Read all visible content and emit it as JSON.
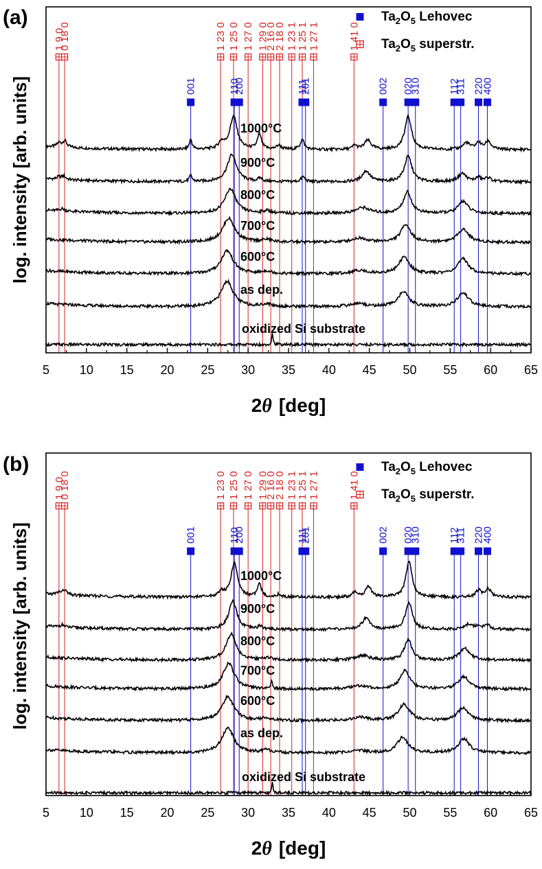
{
  "chart_data": [
    {
      "type": "line",
      "panel": "(a)",
      "xlabel_symbol": "2",
      "xlabel_theta": "θ",
      "xlabel_unit": "[deg]",
      "ylabel": "log. intensity [arb. units]",
      "xlim": [
        5,
        65
      ],
      "x_ticks": [
        5,
        10,
        15,
        20,
        25,
        30,
        35,
        40,
        45,
        50,
        55,
        60,
        65
      ],
      "legend": [
        {
          "marker": "filled-square",
          "color": "#1010d0",
          "pre": "Ta",
          "sub1": "2",
          "mid": "O",
          "sub2": "5",
          "post": " Lehovec"
        },
        {
          "marker": "crossed-square",
          "color": "#d62020",
          "pre": "Ta",
          "sub1": "2",
          "mid": "O",
          "sub2": "5",
          "post": " superstr."
        }
      ],
      "blue_reflections": [
        {
          "hkl": "001",
          "x": 22.9
        },
        {
          "hkl": "110",
          "x": 28.3
        },
        {
          "hkl": "200",
          "x": 28.9
        },
        {
          "hkl": "111",
          "x": 36.7
        },
        {
          "hkl": "201",
          "x": 37.1
        },
        {
          "hkl": "002",
          "x": 46.7
        },
        {
          "hkl": "020",
          "x": 49.8
        },
        {
          "hkl": "310",
          "x": 50.7
        },
        {
          "hkl": "112",
          "x": 55.5
        },
        {
          "hkl": "311",
          "x": 56.3
        },
        {
          "hkl": "220",
          "x": 58.5
        },
        {
          "hkl": "400",
          "x": 59.6
        }
      ],
      "red_reflections": [
        {
          "hkl": "1 9 0",
          "x": 6.6
        },
        {
          "hkl": "0 18 0",
          "x": 7.3
        },
        {
          "hkl": "1 23 0",
          "x": 26.6
        },
        {
          "hkl": "1 25 0",
          "x": 28.2
        },
        {
          "hkl": "1 27 0",
          "x": 30.0
        },
        {
          "hkl": "1 29 0",
          "x": 31.8
        },
        {
          "hkl": "2 16 0",
          "x": 32.8
        },
        {
          "hkl": "2 18 0",
          "x": 33.9
        },
        {
          "hkl": "1 23 1",
          "x": 35.4
        },
        {
          "hkl": "1 25 1",
          "x": 36.7
        },
        {
          "hkl": "1 27 1",
          "x": 38.1
        },
        {
          "hkl": "1 41 0",
          "x": 43.1
        }
      ],
      "series": [
        {
          "name": "1000°C",
          "peaks": [
            [
              6.6,
              0.5,
              0.3
            ],
            [
              7.3,
              0.8,
              0.3
            ],
            [
              22.9,
              1.2,
              0.2
            ],
            [
              26.7,
              0.8,
              0.4
            ],
            [
              28.2,
              4.0,
              0.55
            ],
            [
              31.4,
              1.8,
              0.3
            ],
            [
              33.8,
              0.5,
              0.35
            ],
            [
              36.7,
              1.2,
              0.3
            ],
            [
              43.2,
              0.5,
              0.3
            ],
            [
              44.8,
              1.1,
              0.5
            ],
            [
              49.8,
              4.0,
              0.5
            ],
            [
              57.0,
              0.8,
              0.5
            ],
            [
              58.5,
              0.8,
              0.4
            ],
            [
              59.7,
              1.0,
              0.4
            ]
          ]
        },
        {
          "name": "900°C",
          "peaks": [
            [
              6.6,
              0.3,
              0.3
            ],
            [
              7.2,
              0.4,
              0.3
            ],
            [
              22.9,
              0.7,
              0.2
            ],
            [
              28.0,
              3.3,
              0.7
            ],
            [
              31.5,
              0.4,
              0.3
            ],
            [
              36.8,
              0.6,
              0.3
            ],
            [
              44.6,
              1.3,
              0.6
            ],
            [
              49.8,
              3.1,
              0.55
            ],
            [
              56.5,
              1.0,
              0.6
            ],
            [
              58.5,
              0.5,
              0.4
            ],
            [
              59.7,
              0.5,
              0.4
            ]
          ]
        },
        {
          "name": "800°C",
          "peaks": [
            [
              7.0,
              0.3,
              0.4
            ],
            [
              27.8,
              3.0,
              0.8
            ],
            [
              32.3,
              0.3,
              0.6
            ],
            [
              44.2,
              0.7,
              1.0
            ],
            [
              49.7,
              2.6,
              0.6
            ],
            [
              56.6,
              1.5,
              0.7
            ]
          ]
        },
        {
          "name": "700°C",
          "peaks": [
            [
              27.6,
              2.9,
              0.9
            ],
            [
              32.3,
              0.3,
              0.7
            ],
            [
              43.8,
              0.5,
              1.1
            ],
            [
              49.5,
              2.2,
              0.7
            ],
            [
              56.6,
              1.6,
              0.8
            ]
          ]
        },
        {
          "name": "600°C",
          "peaks": [
            [
              27.4,
              2.8,
              0.9
            ],
            [
              32.3,
              0.3,
              0.7
            ],
            [
              43.8,
              0.4,
              1.1
            ],
            [
              49.3,
              2.0,
              0.8
            ],
            [
              56.6,
              1.8,
              0.8
            ]
          ]
        },
        {
          "name": "as dep.",
          "peaks": [
            [
              27.4,
              3.1,
              0.9
            ],
            [
              32.3,
              0.3,
              0.7
            ],
            [
              43.6,
              0.4,
              1.1
            ],
            [
              49.2,
              1.8,
              0.8
            ],
            [
              56.6,
              1.7,
              0.8
            ]
          ]
        },
        {
          "name": "oxidized Si substrate",
          "peaks": [
            [
              33.0,
              1.4,
              0.1
            ]
          ]
        }
      ]
    },
    {
      "type": "line",
      "panel": "(b)",
      "xlabel_symbol": "2",
      "xlabel_theta": "θ",
      "xlabel_unit": "[deg]",
      "ylabel": "log. intensity [arb. units]",
      "xlim": [
        5,
        65
      ],
      "x_ticks": [
        5,
        10,
        15,
        20,
        25,
        30,
        35,
        40,
        45,
        50,
        55,
        60,
        65
      ],
      "legend": [
        {
          "marker": "filled-square",
          "color": "#1010d0",
          "pre": "Ta",
          "sub1": "2",
          "mid": "O",
          "sub2": "5",
          "post": " Lehovec"
        },
        {
          "marker": "crossed-square",
          "color": "#d62020",
          "pre": "Ta",
          "sub1": "2",
          "mid": "O",
          "sub2": "5",
          "post": " superstr."
        }
      ],
      "blue_reflections": [
        {
          "hkl": "001",
          "x": 22.9
        },
        {
          "hkl": "110",
          "x": 28.3
        },
        {
          "hkl": "200",
          "x": 28.9
        },
        {
          "hkl": "111",
          "x": 36.7
        },
        {
          "hkl": "201",
          "x": 37.1
        },
        {
          "hkl": "002",
          "x": 46.7
        },
        {
          "hkl": "020",
          "x": 49.8
        },
        {
          "hkl": "310",
          "x": 50.7
        },
        {
          "hkl": "112",
          "x": 55.5
        },
        {
          "hkl": "311",
          "x": 56.3
        },
        {
          "hkl": "220",
          "x": 58.5
        },
        {
          "hkl": "400",
          "x": 59.6
        }
      ],
      "red_reflections": [
        {
          "hkl": "1 9 0",
          "x": 6.6
        },
        {
          "hkl": "0 18 0",
          "x": 7.3
        },
        {
          "hkl": "1 23 0",
          "x": 26.6
        },
        {
          "hkl": "1 25 0",
          "x": 28.2
        },
        {
          "hkl": "1 27 0",
          "x": 30.0
        },
        {
          "hkl": "1 29 0",
          "x": 31.8
        },
        {
          "hkl": "2 16 0",
          "x": 32.8
        },
        {
          "hkl": "2 18 0",
          "x": 33.9
        },
        {
          "hkl": "1 23 1",
          "x": 35.4
        },
        {
          "hkl": "1 25 1",
          "x": 36.7
        },
        {
          "hkl": "1 27 1",
          "x": 38.1
        },
        {
          "hkl": "1 41 0",
          "x": 43.1
        }
      ],
      "series": [
        {
          "name": "1000°C",
          "peaks": [
            [
              6.6,
              0.3,
              0.3
            ],
            [
              7.3,
              0.6,
              0.3
            ],
            [
              26.7,
              0.6,
              0.4
            ],
            [
              28.3,
              4.1,
              0.5
            ],
            [
              31.4,
              1.5,
              0.3
            ],
            [
              33.8,
              0.3,
              0.35
            ],
            [
              43.2,
              0.6,
              0.3
            ],
            [
              44.9,
              1.3,
              0.45
            ],
            [
              49.9,
              4.4,
              0.45
            ],
            [
              58.5,
              0.8,
              0.4
            ],
            [
              59.7,
              1.0,
              0.4
            ]
          ]
        },
        {
          "name": "900°C",
          "peaks": [
            [
              7.0,
              0.3,
              0.3
            ],
            [
              28.1,
              3.4,
              0.6
            ],
            [
              31.5,
              0.4,
              0.3
            ],
            [
              44.6,
              1.4,
              0.6
            ],
            [
              49.9,
              3.3,
              0.5
            ],
            [
              57.3,
              0.6,
              0.6
            ],
            [
              58.5,
              0.4,
              0.4
            ],
            [
              59.6,
              0.5,
              0.4
            ]
          ]
        },
        {
          "name": "800°C",
          "peaks": [
            [
              27.9,
              3.2,
              0.75
            ],
            [
              32.5,
              0.3,
              0.6
            ],
            [
              44.2,
              0.6,
              1.0
            ],
            [
              49.8,
              2.5,
              0.55
            ],
            [
              56.8,
              1.4,
              0.8
            ]
          ]
        },
        {
          "name": "700°C",
          "peaks": [
            [
              27.6,
              3.1,
              0.85
            ],
            [
              32.9,
              1.0,
              0.1
            ],
            [
              43.8,
              0.4,
              1.1
            ],
            [
              49.4,
              2.3,
              0.7
            ],
            [
              56.7,
              1.5,
              0.8
            ]
          ]
        },
        {
          "name": "600°C",
          "peaks": [
            [
              27.5,
              2.9,
              0.9
            ],
            [
              32.3,
              0.3,
              0.7
            ],
            [
              43.8,
              0.4,
              1.1
            ],
            [
              49.3,
              2.0,
              0.8
            ],
            [
              56.6,
              1.6,
              0.8
            ]
          ]
        },
        {
          "name": "as dep.",
          "peaks": [
            [
              27.5,
              3.0,
              0.9
            ],
            [
              32.3,
              0.3,
              0.7
            ],
            [
              43.6,
              0.3,
              1.1
            ],
            [
              49.1,
              1.9,
              0.8
            ],
            [
              56.7,
              1.7,
              0.8
            ]
          ]
        },
        {
          "name": "oxidized Si substrate",
          "peaks": [
            [
              33.0,
              1.2,
              0.1
            ]
          ]
        }
      ]
    }
  ]
}
